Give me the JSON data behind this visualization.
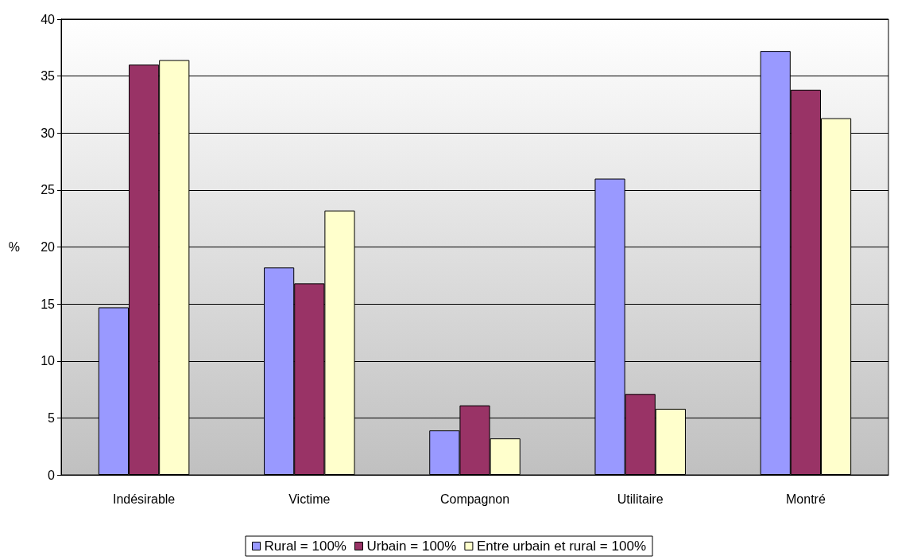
{
  "chart_data": {
    "type": "bar",
    "ylabel": "%",
    "categories": [
      "Indésirable",
      "Victime",
      "Compagnon",
      "Utilitaire",
      "Montré"
    ],
    "series": [
      {
        "name": "Rural = 100%",
        "color": "#9999ff",
        "values": [
          14.7,
          18.2,
          3.9,
          26.0,
          37.2
        ]
      },
      {
        "name": "Urbain = 100%",
        "color": "#993366",
        "values": [
          36.0,
          16.8,
          6.1,
          7.1,
          33.8
        ]
      },
      {
        "name": "Entre urbain et rural = 100%",
        "color": "#ffffcc",
        "values": [
          36.4,
          23.2,
          3.2,
          5.8,
          31.3
        ]
      }
    ],
    "ylim": [
      0,
      40
    ],
    "yticks": [
      0,
      5,
      10,
      15,
      20,
      25,
      30,
      35,
      40
    ],
    "grid": "y",
    "legend": "bottom"
  }
}
